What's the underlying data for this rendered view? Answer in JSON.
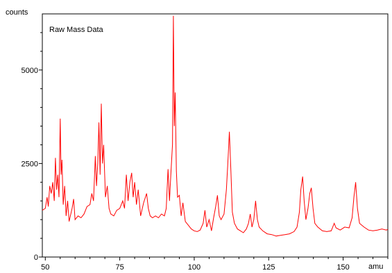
{
  "chart_data": {
    "type": "line",
    "title": "Raw Mass Data",
    "ylabel": "counts",
    "xlabel": "amu",
    "xlim": [
      49,
      165
    ],
    "ylim": [
      0,
      6500
    ],
    "xticks": [
      50,
      75,
      100,
      125,
      150
    ],
    "yticks": [
      0,
      2500,
      5000
    ],
    "minor_yticks": [
      500,
      1000,
      1500,
      2000,
      3000,
      3500,
      4000,
      4500,
      5500,
      6000
    ],
    "line_color": "#ff0000",
    "grid": false,
    "series": [
      {
        "values": [
          [
            49,
            1250
          ],
          [
            50,
            1300
          ],
          [
            50.6,
            1600
          ],
          [
            51,
            1350
          ],
          [
            51.5,
            1900
          ],
          [
            52,
            1700
          ],
          [
            52.5,
            2000
          ],
          [
            53,
            1500
          ],
          [
            53.4,
            2650
          ],
          [
            53.8,
            1800
          ],
          [
            54.2,
            2200
          ],
          [
            54.6,
            1600
          ],
          [
            55,
            3700
          ],
          [
            55.3,
            2200
          ],
          [
            55.6,
            2600
          ],
          [
            56,
            1400
          ],
          [
            56.5,
            1900
          ],
          [
            57,
            1100
          ],
          [
            57.5,
            1500
          ],
          [
            58,
            950
          ],
          [
            59,
            1300
          ],
          [
            59.5,
            1550
          ],
          [
            60,
            1000
          ],
          [
            61,
            1100
          ],
          [
            62,
            1050
          ],
          [
            63,
            1150
          ],
          [
            64,
            1350
          ],
          [
            65,
            1400
          ],
          [
            65.6,
            1700
          ],
          [
            66.2,
            1500
          ],
          [
            66.8,
            2700
          ],
          [
            67.2,
            1900
          ],
          [
            67.6,
            2500
          ],
          [
            68,
            3600
          ],
          [
            68.4,
            2200
          ],
          [
            68.8,
            4100
          ],
          [
            69.2,
            2500
          ],
          [
            69.6,
            3000
          ],
          [
            70.2,
            1600
          ],
          [
            70.8,
            1900
          ],
          [
            71.4,
            1300
          ],
          [
            72,
            1150
          ],
          [
            73,
            1100
          ],
          [
            74,
            1250
          ],
          [
            75,
            1300
          ],
          [
            76,
            1500
          ],
          [
            76.6,
            1300
          ],
          [
            77.2,
            2200
          ],
          [
            77.8,
            1500
          ],
          [
            78.4,
            2000
          ],
          [
            79,
            2250
          ],
          [
            79.5,
            1600
          ],
          [
            80,
            2000
          ],
          [
            80.6,
            1400
          ],
          [
            81.2,
            1800
          ],
          [
            82,
            1100
          ],
          [
            83,
            1450
          ],
          [
            84,
            1700
          ],
          [
            84.6,
            1300
          ],
          [
            85.2,
            1100
          ],
          [
            86,
            1050
          ],
          [
            87,
            1100
          ],
          [
            88,
            1050
          ],
          [
            89,
            1150
          ],
          [
            90,
            1100
          ],
          [
            90.6,
            1300
          ],
          [
            91.2,
            2350
          ],
          [
            91.7,
            1500
          ],
          [
            92.2,
            2300
          ],
          [
            92.7,
            3000
          ],
          [
            93,
            6450
          ],
          [
            93.3,
            3500
          ],
          [
            93.6,
            4400
          ],
          [
            94,
            2300
          ],
          [
            94.4,
            1600
          ],
          [
            95,
            1650
          ],
          [
            95.6,
            1100
          ],
          [
            96.2,
            1450
          ],
          [
            97,
            950
          ],
          [
            98,
            850
          ],
          [
            99,
            750
          ],
          [
            100,
            700
          ],
          [
            101,
            680
          ],
          [
            102,
            720
          ],
          [
            103,
            900
          ],
          [
            103.6,
            1250
          ],
          [
            104.2,
            800
          ],
          [
            105,
            1000
          ],
          [
            105.8,
            700
          ],
          [
            106.5,
            1050
          ],
          [
            107.2,
            1350
          ],
          [
            107.8,
            1650
          ],
          [
            108.4,
            1100
          ],
          [
            109,
            1000
          ],
          [
            110,
            1150
          ],
          [
            110.8,
            1800
          ],
          [
            111.4,
            2700
          ],
          [
            111.8,
            3350
          ],
          [
            112.3,
            2300
          ],
          [
            112.8,
            1200
          ],
          [
            113.5,
            900
          ],
          [
            114.5,
            750
          ],
          [
            115.5,
            700
          ],
          [
            116.5,
            650
          ],
          [
            117.5,
            750
          ],
          [
            118.2,
            900
          ],
          [
            118.8,
            1150
          ],
          [
            119.4,
            800
          ],
          [
            120,
            1000
          ],
          [
            120.6,
            1500
          ],
          [
            121.2,
            1000
          ],
          [
            121.8,
            800
          ],
          [
            123,
            700
          ],
          [
            124.5,
            620
          ],
          [
            126,
            600
          ],
          [
            127.5,
            560
          ],
          [
            129,
            580
          ],
          [
            130.5,
            600
          ],
          [
            132,
            620
          ],
          [
            133.5,
            680
          ],
          [
            134.5,
            800
          ],
          [
            135.3,
            1200
          ],
          [
            135.8,
            1800
          ],
          [
            136.4,
            2150
          ],
          [
            136.9,
            1500
          ],
          [
            137.5,
            1000
          ],
          [
            138.2,
            1300
          ],
          [
            138.8,
            1700
          ],
          [
            139.3,
            1850
          ],
          [
            139.9,
            1300
          ],
          [
            140.5,
            900
          ],
          [
            141.5,
            800
          ],
          [
            143,
            700
          ],
          [
            144.5,
            680
          ],
          [
            146,
            700
          ],
          [
            147,
            900
          ],
          [
            147.6,
            780
          ],
          [
            149,
            720
          ],
          [
            150.5,
            800
          ],
          [
            152,
            780
          ],
          [
            153,
            1050
          ],
          [
            153.6,
            1600
          ],
          [
            154.2,
            2000
          ],
          [
            154.8,
            1300
          ],
          [
            155.5,
            900
          ],
          [
            157,
            800
          ],
          [
            158.5,
            720
          ],
          [
            160,
            700
          ],
          [
            161.5,
            720
          ],
          [
            163,
            750
          ],
          [
            164.5,
            720
          ],
          [
            165,
            740
          ]
        ]
      }
    ]
  }
}
